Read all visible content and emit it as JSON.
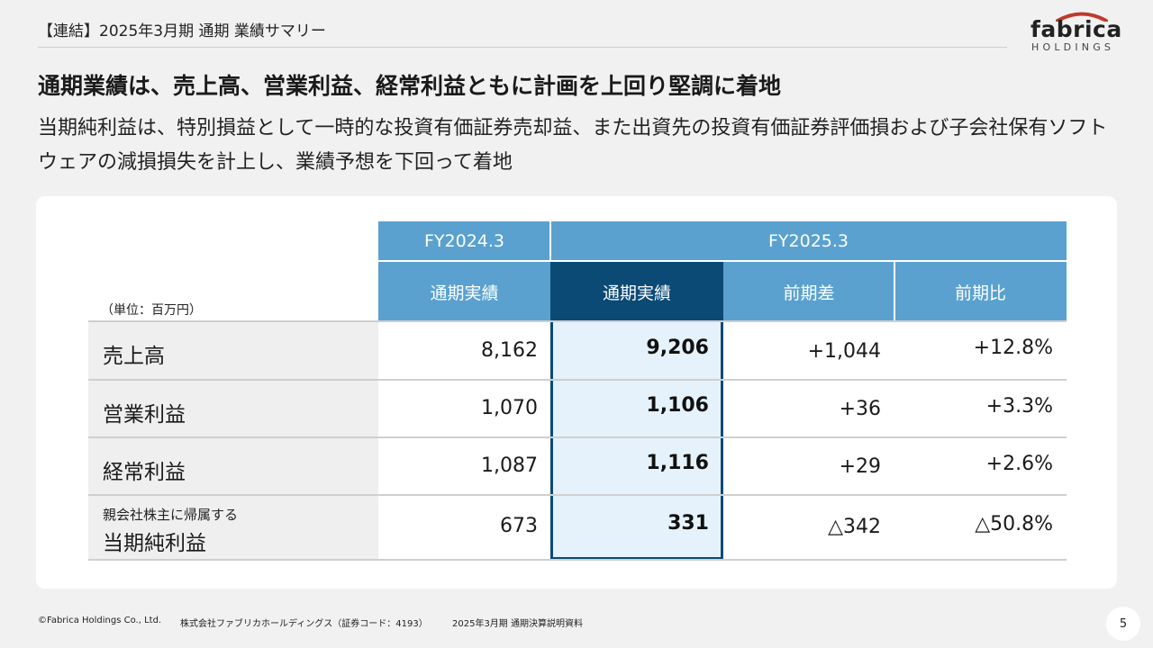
{
  "header": {
    "title": "【連結】2025年3月期 通期 業績サマリー"
  },
  "logo": {
    "word": "fabrica",
    "sub": "HOLDINGS"
  },
  "headline": "通期業績は、売上高、営業利益、経常利益ともに計画を上回り堅調に着地",
  "description": "当期純利益は、特別損益として一時的な投資有価証券売却益、また出資先の投資有価証券評価損および子会社保有ソフトウェアの減損損失を計上し、業績予想を下回って着地",
  "table": {
    "unit": "（単位：百万円）",
    "period_headers": [
      "FY2024.3",
      "FY2025.3"
    ],
    "column_headers": [
      "通期実績",
      "通期実績",
      "前期差",
      "前期比"
    ],
    "rows": [
      {
        "label": "売上高",
        "sublabel": "",
        "prev": "8,162",
        "curr": "9,206",
        "diff": "+1,044",
        "ratio": "+12.8%"
      },
      {
        "label": "営業利益",
        "sublabel": "",
        "prev": "1,070",
        "curr": "1,106",
        "diff": "+36",
        "ratio": "+3.3%"
      },
      {
        "label": "経常利益",
        "sublabel": "",
        "prev": "1,087",
        "curr": "1,116",
        "diff": "+29",
        "ratio": "+2.6%"
      },
      {
        "label": "当期純利益",
        "sublabel": "親会社株主に帰属する",
        "prev": "673",
        "curr": "331",
        "diff": "△342",
        "ratio": "△50.8%"
      }
    ]
  },
  "footer": {
    "copyright": "©Fabrica Holdings Co., Ltd.",
    "company": "株式会社ファブリカホールディングス（証券コード：4193）",
    "doc": "2025年3月期 通期決算説明資料",
    "page": "5"
  },
  "colors": {
    "header_blue": "#5aa1cf",
    "navy": "#0b4a75",
    "highlight": "#e5f2fb",
    "logo_arc": "#c0392b"
  }
}
